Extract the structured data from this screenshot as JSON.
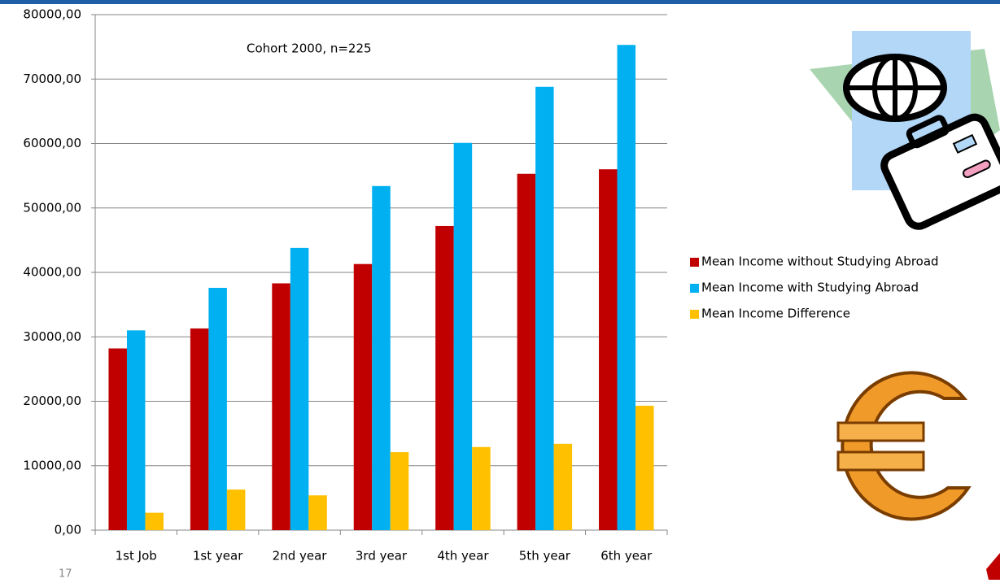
{
  "chart_data": {
    "type": "bar",
    "annotation": "Cohort 2000, n=225",
    "page_number": "17",
    "categories": [
      "1st Job",
      "1st year",
      "2nd year",
      "3rd year",
      "4th year",
      "5th year",
      "6th year"
    ],
    "series": [
      {
        "name": "Mean Income without Studying Abroad",
        "color": "#c00000",
        "values": [
          28200,
          31300,
          38300,
          41300,
          47200,
          55300,
          56000
        ]
      },
      {
        "name": "Mean Income with Studying Abroad",
        "color": "#00b0f0",
        "values": [
          31000,
          37600,
          43800,
          53400,
          60100,
          68800,
          75300
        ]
      },
      {
        "name": "Mean Income Difference",
        "color": "#ffc000",
        "values": [
          2700,
          6300,
          5400,
          12100,
          12900,
          13400,
          19300
        ]
      }
    ],
    "ylim": [
      0,
      80000
    ],
    "yticks": [
      {
        "value": 0,
        "label": "0,00"
      },
      {
        "value": 10000,
        "label": "10000,00"
      },
      {
        "value": 20000,
        "label": "20000,00"
      },
      {
        "value": 30000,
        "label": "30000,00"
      },
      {
        "value": 40000,
        "label": "40000,00"
      },
      {
        "value": 50000,
        "label": "50000,00"
      },
      {
        "value": 60000,
        "label": "60000,00"
      },
      {
        "value": 70000,
        "label": "70000,00"
      },
      {
        "value": 80000,
        "label": "80000,00"
      }
    ],
    "grid": true,
    "legend": "right"
  }
}
